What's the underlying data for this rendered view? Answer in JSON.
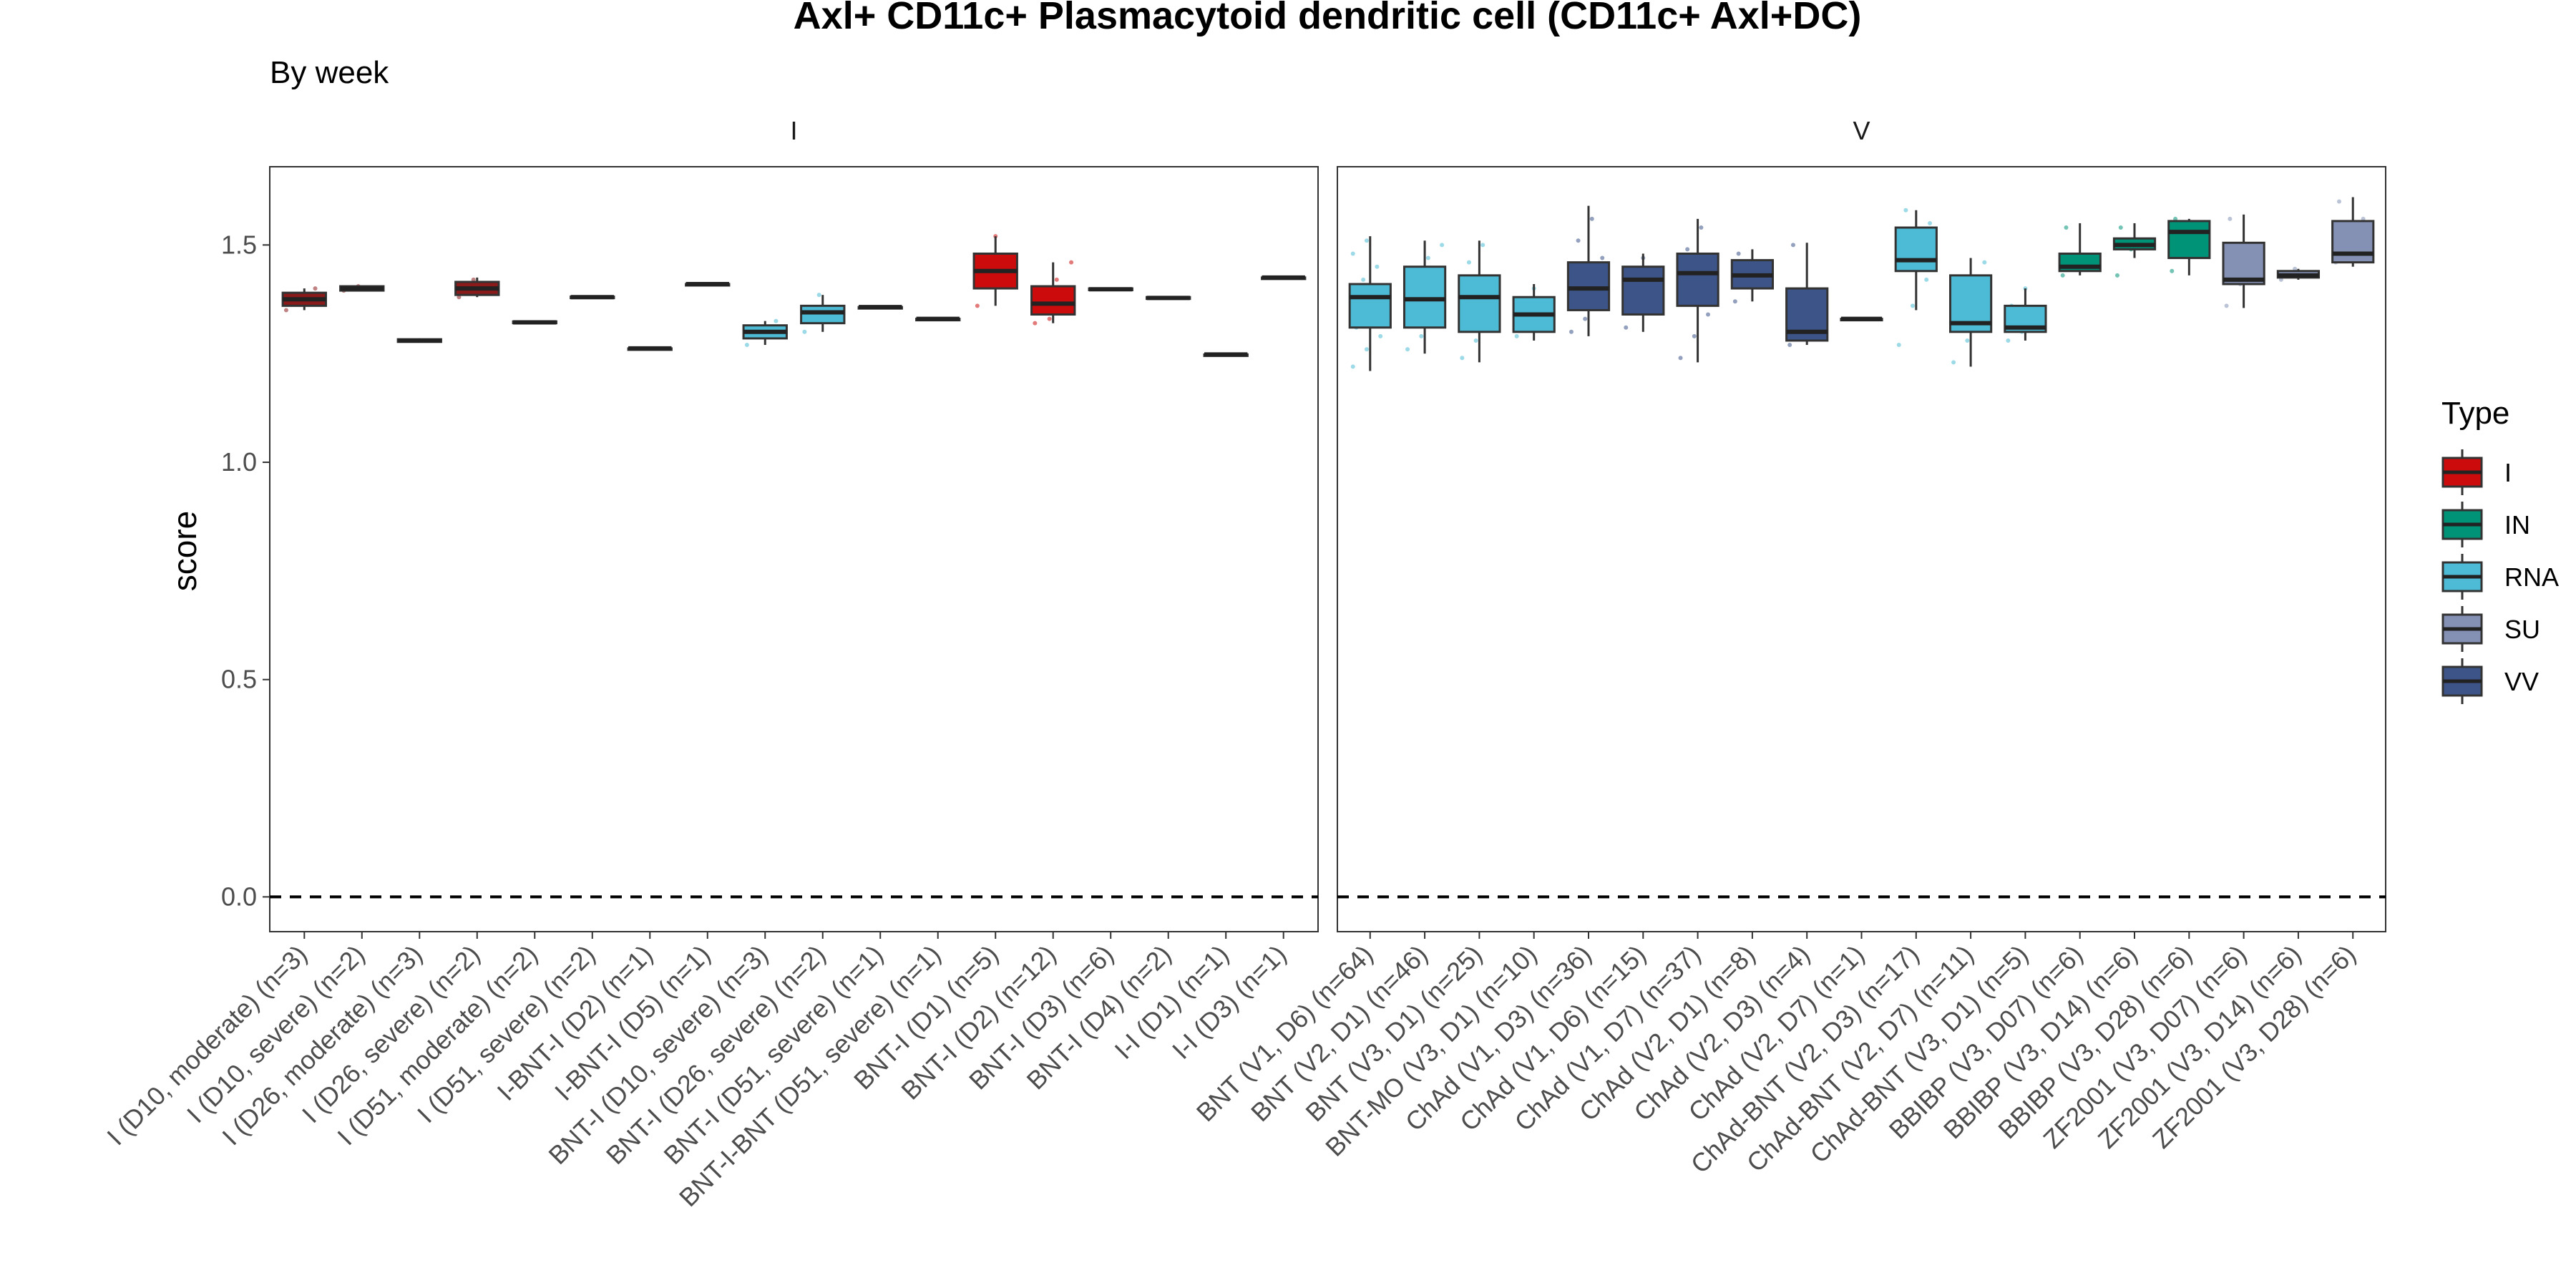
{
  "chart_data": {
    "type": "boxplot",
    "title": "Axl+ CD11c+ Plasmacytoid dendritic cell (CD11c+ Axl+DC)",
    "subtitle": "By week",
    "ylabel": "score",
    "ylim": [
      -0.08,
      1.68
    ],
    "yticks": [
      0.0,
      0.5,
      1.0,
      1.5
    ],
    "reference_line": 0.0,
    "legend": {
      "title": "Type",
      "placement": "right",
      "entries": [
        {
          "name": "I",
          "color": "#CC0C0C"
        },
        {
          "name": "IN",
          "color": "#009377"
        },
        {
          "name": "RNA",
          "color": "#4DBBD5"
        },
        {
          "name": "SU",
          "color": "#8491B4"
        },
        {
          "name": "VV",
          "color": "#3C5488"
        }
      ]
    },
    "panels": [
      {
        "name": "I",
        "boxes": [
          {
            "label": "I (D10, moderate) (n=3)",
            "color": "#8B1A1A",
            "min": 1.35,
            "q1": 1.36,
            "median": 1.375,
            "q3": 1.39,
            "max": 1.4,
            "points": [
              1.35,
              1.38,
              1.4
            ]
          },
          {
            "label": "I (D10, severe) (n=2)",
            "color": "#8B1A1A",
            "min": 1.395,
            "q1": 1.395,
            "median": 1.4,
            "q3": 1.405,
            "max": 1.405,
            "points": [
              1.395,
              1.405
            ]
          },
          {
            "label": "I (D26, moderate) (n=3)",
            "color": "#8B1A1A",
            "min": 1.275,
            "q1": 1.277,
            "median": 1.28,
            "q3": 1.283,
            "max": 1.285,
            "points": []
          },
          {
            "label": "I (D26, severe) (n=2)",
            "color": "#8B1A1A",
            "min": 1.38,
            "q1": 1.385,
            "median": 1.4,
            "q3": 1.415,
            "max": 1.425,
            "points": [
              1.38,
              1.42
            ]
          },
          {
            "label": "I (D51, moderate) (n=2)",
            "color": "#8B1A1A",
            "min": 1.318,
            "q1": 1.32,
            "median": 1.322,
            "q3": 1.324,
            "max": 1.326,
            "points": []
          },
          {
            "label": "I (D51, severe) (n=2)",
            "color": "#8B1A1A",
            "min": 1.378,
            "q1": 1.379,
            "median": 1.38,
            "q3": 1.381,
            "max": 1.382,
            "points": []
          },
          {
            "label": "I-BNT-I (D2) (n=1)",
            "color": "#8B1A1A",
            "min": 1.262,
            "q1": 1.262,
            "median": 1.262,
            "q3": 1.262,
            "max": 1.262,
            "points": []
          },
          {
            "label": "I-BNT-I (D5) (n=1)",
            "color": "#8B1A1A",
            "min": 1.41,
            "q1": 1.41,
            "median": 1.41,
            "q3": 1.41,
            "max": 1.41,
            "points": []
          },
          {
            "label": "BNT-I (D10, severe) (n=3)",
            "color": "#4DBBD5",
            "min": 1.27,
            "q1": 1.285,
            "median": 1.3,
            "q3": 1.315,
            "max": 1.325,
            "points": [
              1.27,
              1.3,
              1.325
            ]
          },
          {
            "label": "BNT-I (D26, severe) (n=2)",
            "color": "#4DBBD5",
            "min": 1.3,
            "q1": 1.32,
            "median": 1.345,
            "q3": 1.36,
            "max": 1.385,
            "points": [
              1.3,
              1.385
            ]
          },
          {
            "label": "BNT-I (D51, severe) (n=1)",
            "color": "#4DBBD5",
            "min": 1.357,
            "q1": 1.357,
            "median": 1.357,
            "q3": 1.357,
            "max": 1.357,
            "points": []
          },
          {
            "label": "BNT-I-BNT (D51, severe) (n=1)",
            "color": "#4DBBD5",
            "min": 1.33,
            "q1": 1.33,
            "median": 1.33,
            "q3": 1.33,
            "max": 1.33,
            "points": []
          },
          {
            "label": "BNT-I (D1) (n=5)",
            "color": "#CC0C0C",
            "min": 1.36,
            "q1": 1.4,
            "median": 1.44,
            "q3": 1.48,
            "max": 1.52,
            "points": [
              1.36,
              1.41,
              1.44,
              1.47,
              1.52
            ]
          },
          {
            "label": "BNT-I (D2) (n=12)",
            "color": "#CC0C0C",
            "min": 1.32,
            "q1": 1.34,
            "median": 1.365,
            "q3": 1.405,
            "max": 1.46,
            "points": [
              1.32,
              1.33,
              1.35,
              1.36,
              1.37,
              1.38,
              1.4,
              1.42,
              1.46
            ]
          },
          {
            "label": "BNT-I (D3) (n=6)",
            "color": "#8B1A1A",
            "min": 1.395,
            "q1": 1.396,
            "median": 1.398,
            "q3": 1.4,
            "max": 1.402,
            "points": []
          },
          {
            "label": "BNT-I (D4) (n=2)",
            "color": "#8B1A1A",
            "min": 1.375,
            "q1": 1.376,
            "median": 1.378,
            "q3": 1.38,
            "max": 1.381,
            "points": []
          },
          {
            "label": "I-I (D1) (n=1)",
            "color": "#8B1A1A",
            "min": 1.248,
            "q1": 1.248,
            "median": 1.248,
            "q3": 1.248,
            "max": 1.248,
            "points": []
          },
          {
            "label": "I-I (D3) (n=1)",
            "color": "#8B1A1A",
            "min": 1.425,
            "q1": 1.425,
            "median": 1.425,
            "q3": 1.425,
            "max": 1.425,
            "points": []
          }
        ]
      },
      {
        "name": "V",
        "boxes": [
          {
            "label": "BNT (V1, D6) (n=64)",
            "color": "#4DBBD5",
            "min": 1.21,
            "q1": 1.31,
            "median": 1.38,
            "q3": 1.41,
            "max": 1.52,
            "points": [
              1.22,
              1.26,
              1.29,
              1.31,
              1.33,
              1.35,
              1.37,
              1.38,
              1.4,
              1.42,
              1.45,
              1.48,
              1.51
            ]
          },
          {
            "label": "BNT (V2, D1) (n=46)",
            "color": "#4DBBD5",
            "min": 1.25,
            "q1": 1.31,
            "median": 1.375,
            "q3": 1.45,
            "max": 1.51,
            "points": [
              1.26,
              1.29,
              1.32,
              1.35,
              1.38,
              1.41,
              1.44,
              1.47,
              1.5
            ]
          },
          {
            "label": "BNT (V3, D1) (n=25)",
            "color": "#4DBBD5",
            "min": 1.23,
            "q1": 1.3,
            "median": 1.38,
            "q3": 1.43,
            "max": 1.51,
            "points": [
              1.24,
              1.28,
              1.32,
              1.36,
              1.39,
              1.42,
              1.46,
              1.5
            ]
          },
          {
            "label": "BNT-MO (V3, D1) (n=10)",
            "color": "#4DBBD5",
            "min": 1.28,
            "q1": 1.3,
            "median": 1.34,
            "q3": 1.38,
            "max": 1.41,
            "points": [
              1.29,
              1.32,
              1.35,
              1.37,
              1.4
            ]
          },
          {
            "label": "ChAd (V1, D3) (n=36)",
            "color": "#3C5488",
            "min": 1.29,
            "q1": 1.35,
            "median": 1.4,
            "q3": 1.46,
            "max": 1.59,
            "points": [
              1.3,
              1.33,
              1.37,
              1.4,
              1.43,
              1.47,
              1.51,
              1.56
            ]
          },
          {
            "label": "ChAd (V1, D6) (n=15)",
            "color": "#3C5488",
            "min": 1.3,
            "q1": 1.34,
            "median": 1.42,
            "q3": 1.45,
            "max": 1.48,
            "points": [
              1.31,
              1.36,
              1.4,
              1.43,
              1.47
            ]
          },
          {
            "label": "ChAd (V1, D7) (n=37)",
            "color": "#3C5488",
            "min": 1.23,
            "q1": 1.36,
            "median": 1.435,
            "q3": 1.48,
            "max": 1.56,
            "points": [
              1.24,
              1.29,
              1.34,
              1.38,
              1.42,
              1.45,
              1.49,
              1.54
            ]
          },
          {
            "label": "ChAd (V2, D1) (n=8)",
            "color": "#3C5488",
            "min": 1.37,
            "q1": 1.4,
            "median": 1.43,
            "q3": 1.465,
            "max": 1.49,
            "points": [
              1.37,
              1.41,
              1.44,
              1.48
            ]
          },
          {
            "label": "ChAd (V2, D3) (n=4)",
            "color": "#3C5488",
            "min": 1.27,
            "q1": 1.28,
            "median": 1.3,
            "q3": 1.4,
            "max": 1.505,
            "points": [
              1.27,
              1.29,
              1.32,
              1.5
            ]
          },
          {
            "label": "ChAd (V2, D7) (n=1)",
            "color": "#3C5488",
            "min": 1.33,
            "q1": 1.33,
            "median": 1.33,
            "q3": 1.33,
            "max": 1.33,
            "points": []
          },
          {
            "label": "ChAd-BNT (V2, D3) (n=17)",
            "color": "#4DBBD5",
            "min": 1.35,
            "q1": 1.44,
            "median": 1.465,
            "q3": 1.54,
            "max": 1.58,
            "points": [
              1.27,
              1.36,
              1.42,
              1.46,
              1.5,
              1.55,
              1.58
            ]
          },
          {
            "label": "ChAd-BNT (V2, D7) (n=11)",
            "color": "#4DBBD5",
            "min": 1.22,
            "q1": 1.3,
            "median": 1.32,
            "q3": 1.43,
            "max": 1.47,
            "points": [
              1.23,
              1.28,
              1.31,
              1.35,
              1.41,
              1.46
            ]
          },
          {
            "label": "ChAd-BNT (V3, D1) (n=5)",
            "color": "#4DBBD5",
            "min": 1.28,
            "q1": 1.3,
            "median": 1.31,
            "q3": 1.36,
            "max": 1.4,
            "points": [
              1.28,
              1.3,
              1.33,
              1.36,
              1.4
            ]
          },
          {
            "label": "BBIBP (V3, D07) (n=6)",
            "color": "#009377",
            "min": 1.43,
            "q1": 1.44,
            "median": 1.45,
            "q3": 1.48,
            "max": 1.55,
            "points": [
              1.43,
              1.45,
              1.47,
              1.54
            ]
          },
          {
            "label": "BBIBP (V3, D14) (n=6)",
            "color": "#009377",
            "min": 1.47,
            "q1": 1.49,
            "median": 1.5,
            "q3": 1.515,
            "max": 1.55,
            "points": [
              1.43,
              1.49,
              1.51,
              1.54
            ]
          },
          {
            "label": "BBIBP (V3, D28) (n=6)",
            "color": "#009377",
            "min": 1.43,
            "q1": 1.47,
            "median": 1.53,
            "q3": 1.555,
            "max": 1.56,
            "points": [
              1.44,
              1.5,
              1.55,
              1.56
            ]
          },
          {
            "label": "ZF2001 (V3, D07) (n=6)",
            "color": "#8491B4",
            "min": 1.355,
            "q1": 1.41,
            "median": 1.42,
            "q3": 1.505,
            "max": 1.57,
            "points": [
              1.36,
              1.41,
              1.47,
              1.56
            ]
          },
          {
            "label": "ZF2001 (V3, D14) (n=6)",
            "color": "#8491B4",
            "min": 1.42,
            "q1": 1.425,
            "median": 1.43,
            "q3": 1.44,
            "max": 1.445,
            "points": [
              1.42,
              1.445
            ]
          },
          {
            "label": "ZF2001 (V3, D28) (n=6)",
            "color": "#8491B4",
            "min": 1.45,
            "q1": 1.46,
            "median": 1.48,
            "q3": 1.555,
            "max": 1.61,
            "points": [
              1.46,
              1.49,
              1.56,
              1.6
            ]
          }
        ]
      }
    ]
  }
}
